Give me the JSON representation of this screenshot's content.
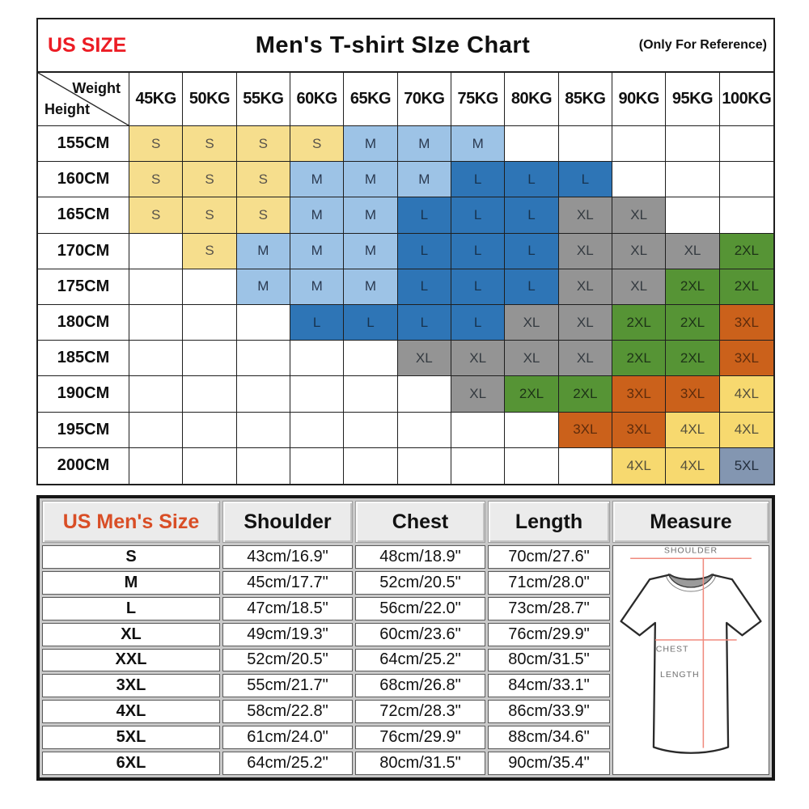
{
  "page": {
    "us_size_label": "US SIZE",
    "title": "Men's T-shirt SIze Chart",
    "note": "(Only For Reference)"
  },
  "accent_colors": {
    "us_size_red": "#EC1C24",
    "us_mens_size_orange": "#D94E26"
  },
  "size_styles": {
    "S": {
      "bg": "#F6DE8D",
      "fg": "#57524a"
    },
    "M": {
      "bg": "#9DC3E6",
      "fg": "#2a3950"
    },
    "L": {
      "bg": "#2E75B6",
      "fg": "#17334f"
    },
    "XL": {
      "bg": "#949494",
      "fg": "#343a40"
    },
    "2XL": {
      "bg": "#569435",
      "fg": "#1d3317"
    },
    "3XL": {
      "bg": "#CB611B",
      "fg": "#5e2c0c"
    },
    "4XL": {
      "bg": "#F7D96F",
      "fg": "#55503c"
    },
    "5XL": {
      "bg": "#8396B1",
      "fg": "#232e3d"
    }
  },
  "chart_data": [
    {
      "type": "heatmap",
      "title": "Men's T-shirt SIze Chart",
      "x_header_label": "Weight",
      "y_header_label": "Height",
      "columns": [
        "45KG",
        "50KG",
        "55KG",
        "60KG",
        "65KG",
        "70KG",
        "75KG",
        "80KG",
        "85KG",
        "90KG",
        "95KG",
        "100KG"
      ],
      "rows": [
        "155CM",
        "160CM",
        "165CM",
        "170CM",
        "175CM",
        "180CM",
        "185CM",
        "190CM",
        "195CM",
        "200CM"
      ],
      "cells": [
        [
          "S",
          "S",
          "S",
          "S",
          "M",
          "M",
          "M",
          "",
          "",
          "",
          "",
          ""
        ],
        [
          "S",
          "S",
          "S",
          "M",
          "M",
          "M",
          "L",
          "L",
          "L",
          "",
          "",
          ""
        ],
        [
          "S",
          "S",
          "S",
          "M",
          "M",
          "L",
          "L",
          "L",
          "XL",
          "XL",
          "",
          ""
        ],
        [
          "",
          "S",
          "M",
          "M",
          "M",
          "L",
          "L",
          "L",
          "XL",
          "XL",
          "XL",
          "2XL"
        ],
        [
          "",
          "",
          "M",
          "M",
          "M",
          "L",
          "L",
          "L",
          "XL",
          "XL",
          "2XL",
          "2XL"
        ],
        [
          "",
          "",
          "",
          "L",
          "L",
          "L",
          "L",
          "XL",
          "XL",
          "2XL",
          "2XL",
          "3XL"
        ],
        [
          "",
          "",
          "",
          "",
          "",
          "XL",
          "XL",
          "XL",
          "XL",
          "2XL",
          "2XL",
          "3XL"
        ],
        [
          "",
          "",
          "",
          "",
          "",
          "",
          "XL",
          "2XL",
          "2XL",
          "3XL",
          "3XL",
          "4XL"
        ],
        [
          "",
          "",
          "",
          "",
          "",
          "",
          "",
          "",
          "3XL",
          "3XL",
          "4XL",
          "4XL"
        ],
        [
          "",
          "",
          "",
          "",
          "",
          "",
          "",
          "",
          "",
          "4XL",
          "4XL",
          "5XL"
        ]
      ]
    },
    {
      "type": "table",
      "columns": [
        "US Men's Size",
        "Shoulder",
        "Chest",
        "Length",
        "Measure"
      ],
      "rows": [
        [
          "S",
          "43cm/16.9\"",
          "48cm/18.9\"",
          "70cm/27.6\""
        ],
        [
          "M",
          "45cm/17.7\"",
          "52cm/20.5\"",
          "71cm/28.0\""
        ],
        [
          "L",
          "47cm/18.5\"",
          "56cm/22.0\"",
          "73cm/28.7\""
        ],
        [
          "XL",
          "49cm/19.3\"",
          "60cm/23.6\"",
          "76cm/29.9\""
        ],
        [
          "XXL",
          "52cm/20.5\"",
          "64cm/25.2\"",
          "80cm/31.5\""
        ],
        [
          "3XL",
          "55cm/21.7\"",
          "68cm/26.8\"",
          "84cm/33.1\""
        ],
        [
          "4XL",
          "58cm/22.8\"",
          "72cm/28.3\"",
          "86cm/33.9\""
        ],
        [
          "5XL",
          "61cm/24.0\"",
          "76cm/29.9\"",
          "88cm/34.6\""
        ],
        [
          "6XL",
          "64cm/25.2\"",
          "80cm/31.5\"",
          "90cm/35.4\""
        ]
      ],
      "diagram": {
        "shoulder_label": "SHOULDER",
        "chest_label": "CHEST",
        "length_label": "LENGTH",
        "line_color": "#F08A7E",
        "label_color": "#6f6f6f"
      }
    }
  ]
}
